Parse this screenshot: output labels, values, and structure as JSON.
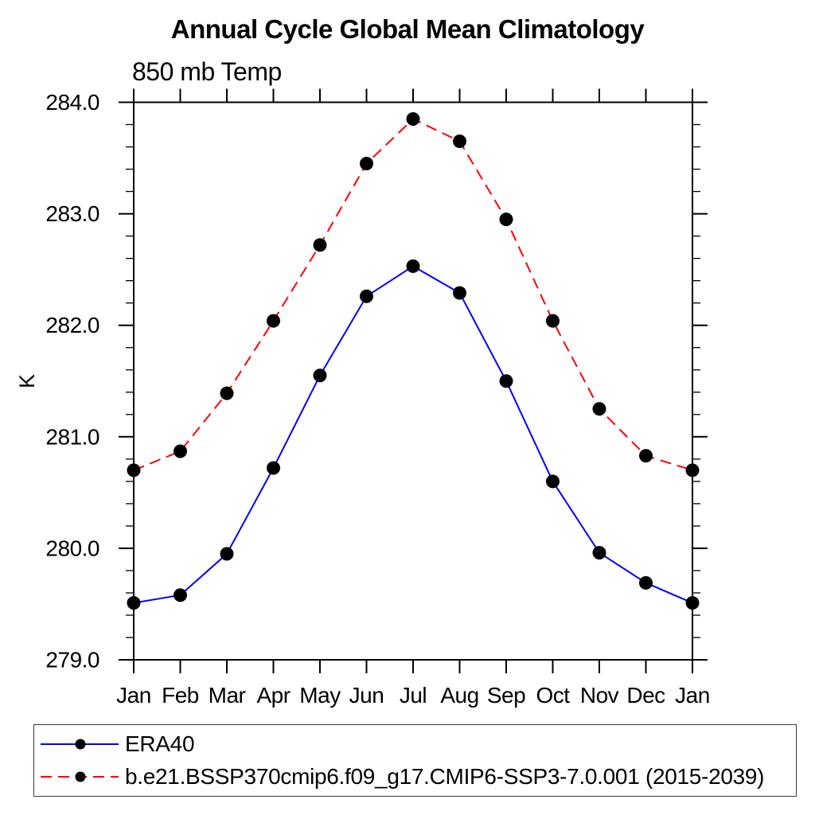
{
  "chart_data": {
    "type": "line",
    "title": "Annual Cycle Global Mean Climatology",
    "subtitle": "850 mb Temp",
    "ylabel": "K",
    "categories": [
      "Jan",
      "Feb",
      "Mar",
      "Apr",
      "May",
      "Jun",
      "Jul",
      "Aug",
      "Sep",
      "Oct",
      "Nov",
      "Dec",
      "Jan"
    ],
    "ylim": [
      279.0,
      284.0
    ],
    "ytick_major": 1.0,
    "ytick_minor": 0.2,
    "ytick_labels": [
      "279.0",
      "280.0",
      "281.0",
      "282.0",
      "283.0",
      "284.0"
    ],
    "grid": false,
    "legend_position": "bottom",
    "series": [
      {
        "name": "ERA40",
        "color": "#0000ff",
        "line_style": "solid",
        "marker": "filled-circle",
        "marker_color": "#000000",
        "values": [
          279.51,
          279.58,
          279.95,
          280.72,
          281.55,
          282.26,
          282.53,
          282.29,
          281.5,
          280.6,
          279.96,
          279.69,
          279.51
        ]
      },
      {
        "name": "b.e21.BSSP370cmip6.f09_g17.CMIP6-SSP3-7.0.001 (2015-2039)",
        "color": "#ff0000",
        "line_style": "dashed",
        "marker": "filled-circle",
        "marker_color": "#000000",
        "values": [
          280.7,
          280.87,
          281.39,
          282.04,
          282.72,
          283.45,
          283.85,
          283.65,
          282.95,
          282.04,
          281.25,
          280.83,
          280.7
        ]
      }
    ],
    "axis_color": "#000000"
  }
}
